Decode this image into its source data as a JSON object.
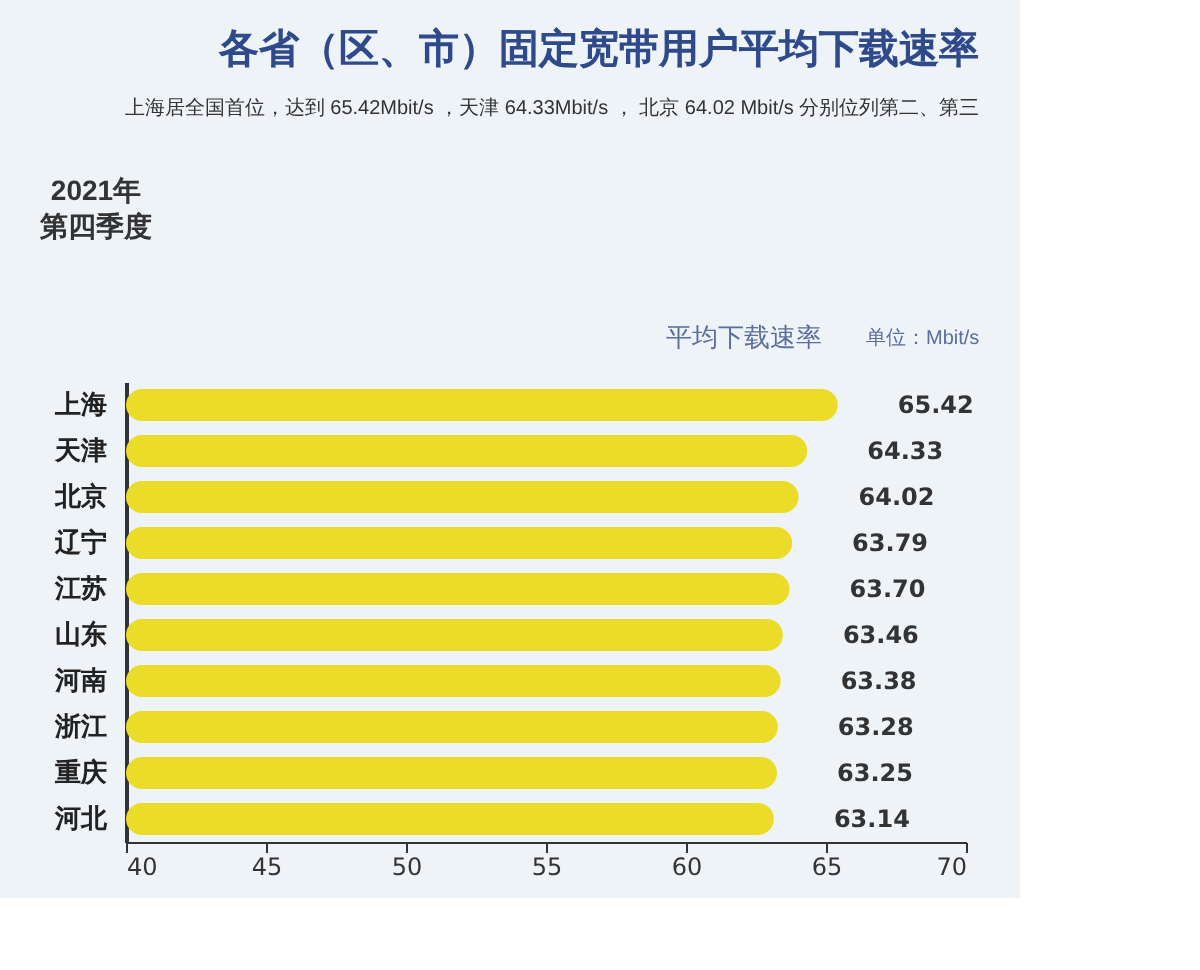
{
  "chart_data": {
    "type": "bar",
    "orientation": "horizontal",
    "title": "各省（区、市）固定宽带用户平均下载速率",
    "subtitle": "上海居全国首位，达到 65.42Mbit/s ，天津 64.33Mbit/s ， 北京 64.02 Mbit/s 分别位列第二、第三",
    "annotations": [
      "2021年",
      "第四季度",
      "平均下载速率",
      "单位：Mbit/s"
    ],
    "categories": [
      "上海",
      "天津",
      "北京",
      "辽宁",
      "江苏",
      "山东",
      "河南",
      "浙江",
      "重庆",
      "河北"
    ],
    "values": [
      65.42,
      64.33,
      64.02,
      63.79,
      63.7,
      63.46,
      63.38,
      63.28,
      63.25,
      63.14
    ],
    "value_labels": [
      "65.42",
      "64.33",
      "64.02",
      "63.79",
      "63.70",
      "63.46",
      "63.38",
      "63.28",
      "63.25",
      "63.14"
    ],
    "color": "#ebdc2a",
    "xlim": [
      40,
      70
    ],
    "xticks": [
      40,
      45,
      50,
      55,
      60,
      65,
      70
    ],
    "grid": false
  }
}
